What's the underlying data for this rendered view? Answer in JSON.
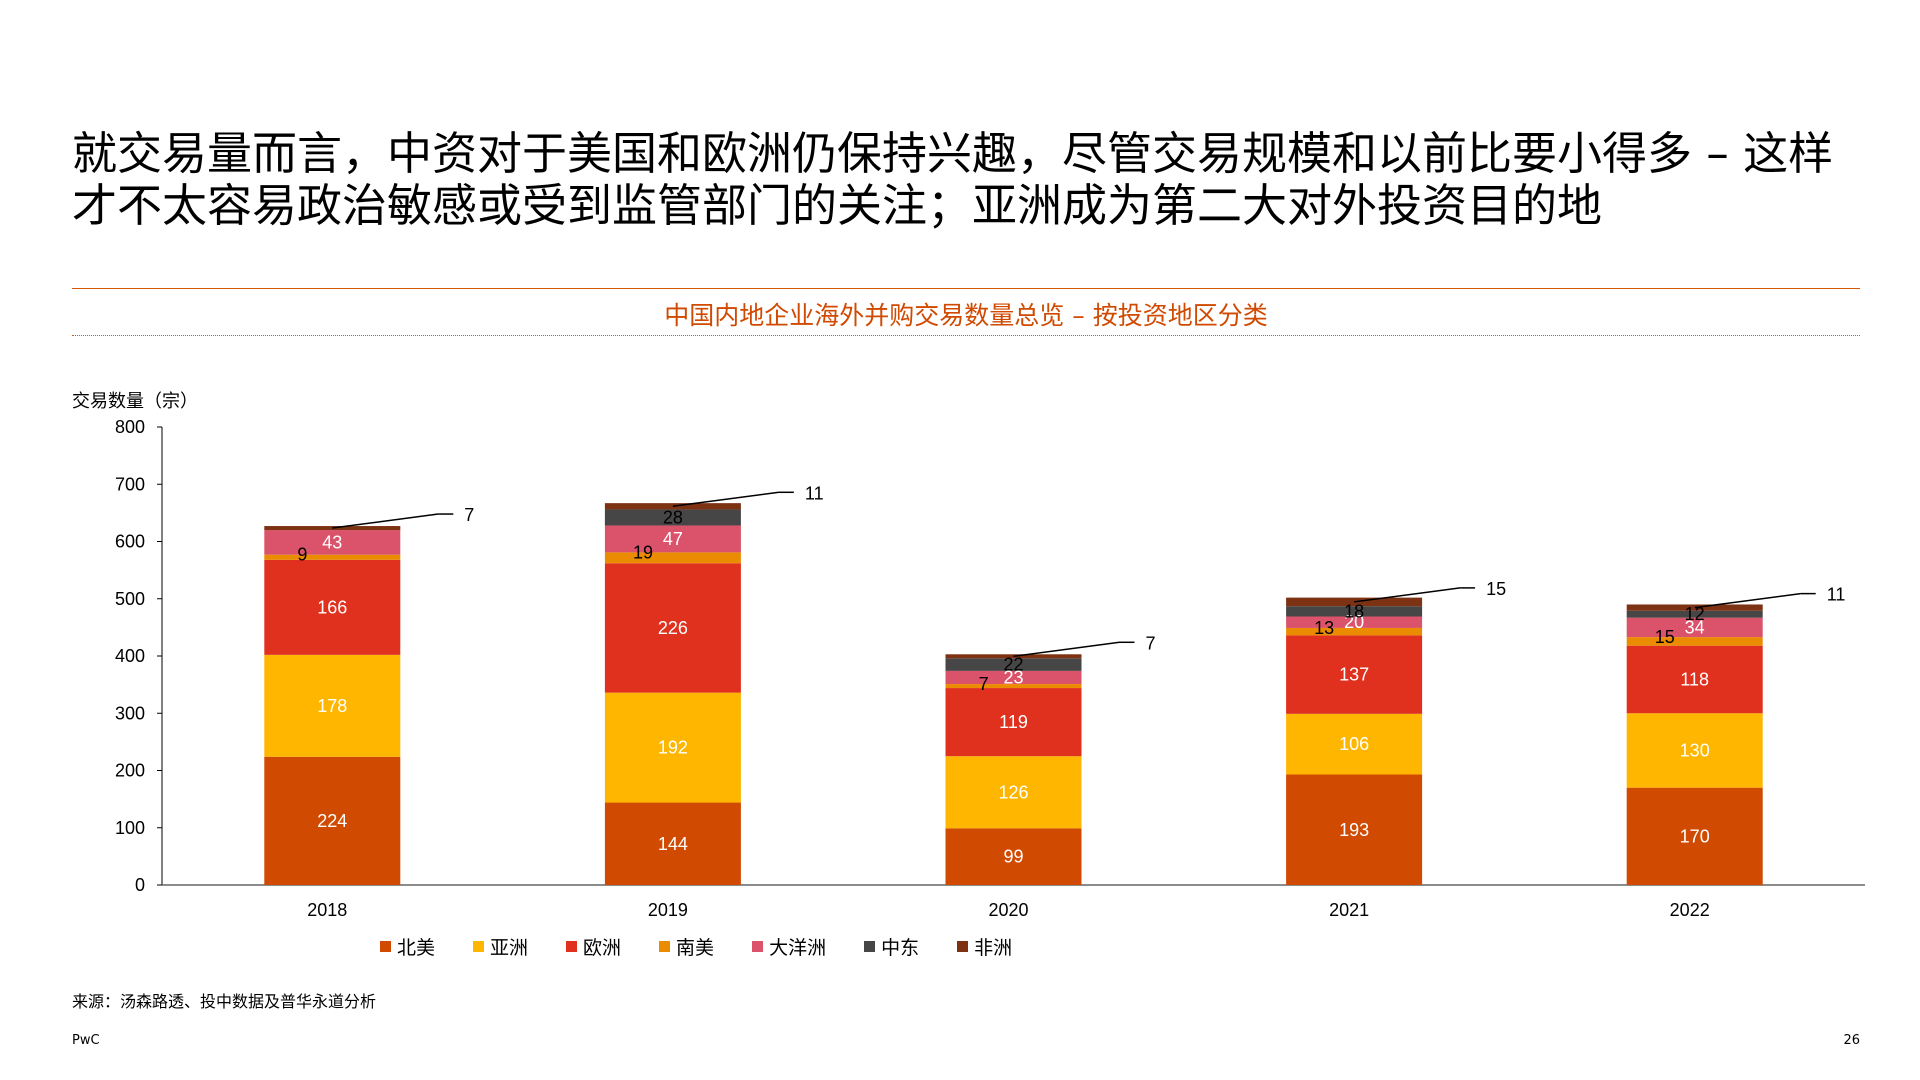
{
  "slide": {
    "headline": "就交易量而言，中资对于美国和欧洲仍保持兴趣，尽管交易规模和以前比要小得多 – 这样才不太容易政治敏感或受到监管部门的关注；亚洲成为第二大对外投资目的地",
    "chart_title": "中国内地企业海外并购交易数量总览 – 按投资地区分类",
    "y_axis_label": "交易数量（宗）",
    "source": "来源：汤森路透、投中数据及普华永道分析",
    "brand": "PwC",
    "page_number": "26"
  },
  "chart_data": {
    "type": "bar",
    "stacked": true,
    "title": "中国内地企业海外并购交易数量总览 – 按投资地区分类",
    "ylabel": "交易数量（宗）",
    "xlabel": "",
    "ylim": [
      0,
      800
    ],
    "yticks": [
      0,
      100,
      200,
      300,
      400,
      500,
      600,
      700,
      800
    ],
    "categories": [
      "2018",
      "2019",
      "2020",
      "2021",
      "2022"
    ],
    "legend_position": "bottom",
    "grid": false,
    "series": [
      {
        "name": "北美",
        "color": "#d04a02",
        "values": [
          224,
          144,
          99,
          193,
          170
        ]
      },
      {
        "name": "亚洲",
        "color": "#ffb600",
        "values": [
          178,
          192,
          126,
          106,
          130
        ]
      },
      {
        "name": "欧洲",
        "color": "#e0301e",
        "values": [
          166,
          226,
          119,
          137,
          118
        ]
      },
      {
        "name": "南美",
        "color": "#eb8c00",
        "values": [
          9,
          19,
          7,
          13,
          15
        ]
      },
      {
        "name": "大洋洲",
        "color": "#db536a",
        "values": [
          43,
          47,
          23,
          20,
          34
        ]
      },
      {
        "name": "中东",
        "color": "#464646",
        "values": [
          0,
          28,
          22,
          18,
          12
        ]
      },
      {
        "name": "非洲",
        "color": "#7d3214",
        "values": [
          7,
          11,
          7,
          15,
          11
        ]
      }
    ]
  }
}
